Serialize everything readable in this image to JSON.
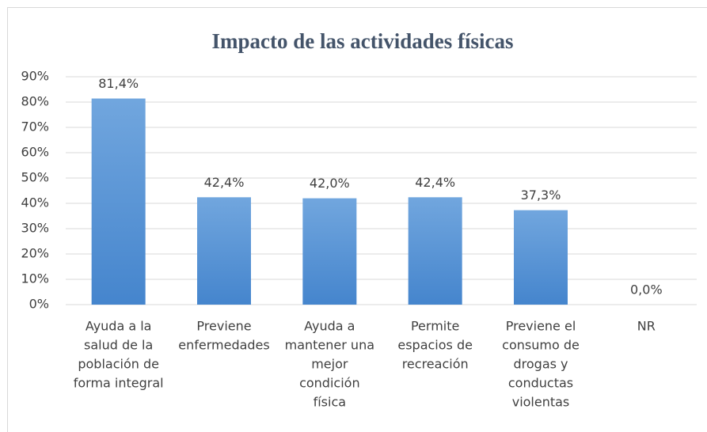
{
  "chart_data": {
    "type": "bar",
    "title": "Impacto de las actividades físicas",
    "categories": [
      [
        "Ayuda a la",
        "salud de la",
        "población de",
        "forma integral"
      ],
      [
        "Previene",
        "enfermedades"
      ],
      [
        "Ayuda a",
        "mantener una",
        "mejor",
        "condición",
        "física"
      ],
      [
        "Permite",
        "espacios de",
        "recreación"
      ],
      [
        "Previene el",
        "consumo de",
        "drogas y",
        "conductas",
        "violentas"
      ],
      [
        "NR"
      ]
    ],
    "values": [
      81.4,
      42.4,
      42.0,
      42.4,
      37.3,
      0.0
    ],
    "value_labels": [
      "81,4%",
      "42,4%",
      "42,0%",
      "42,4%",
      "37,3%",
      "0,0%"
    ],
    "color": "#5b9bd5",
    "ylim": [
      0,
      90
    ],
    "yticks": [
      {
        "value": 0,
        "label": "0%"
      },
      {
        "value": 10,
        "label": "10%"
      },
      {
        "value": 20,
        "label": "20%"
      },
      {
        "value": 30,
        "label": "30%"
      },
      {
        "value": 40,
        "label": "40%"
      },
      {
        "value": 50,
        "label": "50%"
      },
      {
        "value": 60,
        "label": "60%"
      },
      {
        "value": 70,
        "label": "70%"
      },
      {
        "value": 80,
        "label": "80%"
      },
      {
        "value": 90,
        "label": "90%"
      }
    ],
    "grid": true
  }
}
